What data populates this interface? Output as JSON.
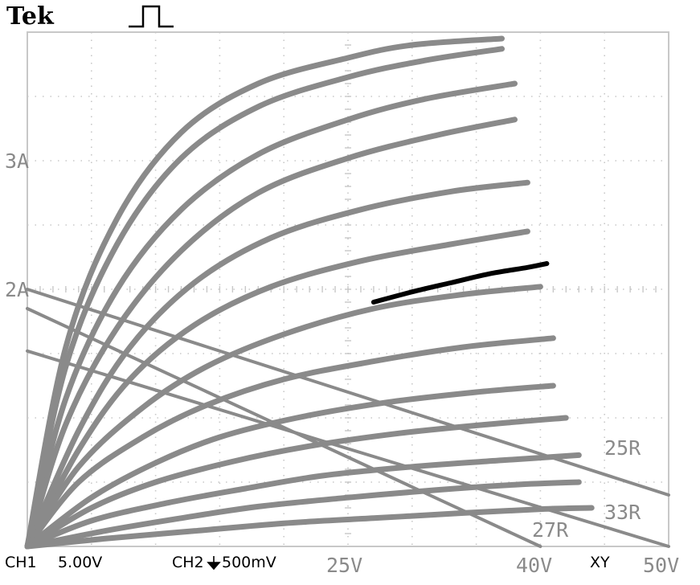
{
  "header": {
    "brand": "Tek",
    "trigger_icon": "pulse-trigger-icon"
  },
  "status_bar": {
    "ch1": "CH1",
    "ch1_scale": "5.00V",
    "ch2": "CH2",
    "ch2_coupling_icon": "ground-coupling-icon",
    "ch2_scale": "500mV",
    "mode": "XY"
  },
  "chart_data": {
    "type": "line",
    "title": "",
    "xlabel": "",
    "ylabel": "",
    "xlim": [
      0,
      50
    ],
    "ylim": [
      0,
      4
    ],
    "x_unit": "V",
    "y_unit": "A",
    "grid": true,
    "annotations": {
      "y_ticks": [
        {
          "value": 3,
          "label": "3A"
        },
        {
          "value": 2,
          "label": "2A"
        }
      ],
      "x_ticks": [
        {
          "value": 25,
          "label": "25V"
        },
        {
          "value": 40,
          "label": "40V"
        },
        {
          "value": 50,
          "label": "50V"
        }
      ],
      "load_lines": [
        {
          "label": "25R",
          "x": [
            0,
            50
          ],
          "y": [
            2.0,
            0.4
          ]
        },
        {
          "label": "33R",
          "x": [
            0,
            50
          ],
          "y": [
            1.52,
            0.0
          ]
        },
        {
          "label": "27R",
          "x": [
            0,
            40
          ],
          "y": [
            1.85,
            0.0
          ]
        }
      ]
    },
    "series": [
      {
        "x": [
          0,
          3,
          7,
          12,
          18,
          25,
          30,
          37
        ],
        "y": [
          0,
          1.55,
          2.55,
          3.22,
          3.6,
          3.8,
          3.9,
          3.95
        ]
      },
      {
        "x": [
          0,
          3,
          7,
          12,
          18,
          25,
          31,
          37
        ],
        "y": [
          0,
          1.4,
          2.35,
          3.02,
          3.42,
          3.65,
          3.78,
          3.87
        ]
      },
      {
        "x": [
          0,
          3,
          7,
          12,
          18,
          25,
          31,
          38
        ],
        "y": [
          0,
          1.15,
          2.0,
          2.62,
          3.05,
          3.32,
          3.48,
          3.6
        ]
      },
      {
        "x": [
          0,
          3,
          7,
          12,
          18,
          25,
          32,
          38
        ],
        "y": [
          0,
          0.95,
          1.7,
          2.3,
          2.75,
          3.02,
          3.2,
          3.32
        ]
      },
      {
        "x": [
          0,
          4,
          8,
          13,
          19,
          26,
          33,
          39
        ],
        "y": [
          0,
          0.9,
          1.55,
          2.05,
          2.4,
          2.62,
          2.76,
          2.83
        ]
      },
      {
        "x": [
          0,
          4,
          8,
          13,
          19,
          26,
          33,
          39
        ],
        "y": [
          0,
          0.75,
          1.3,
          1.72,
          2.02,
          2.22,
          2.35,
          2.45
        ]
      },
      {
        "x": [
          0,
          4,
          9,
          14,
          20,
          27,
          34,
          40
        ],
        "y": [
          0,
          0.62,
          1.08,
          1.4,
          1.65,
          1.85,
          1.96,
          2.02
        ]
      },
      {
        "x": [
          0,
          4,
          9,
          14,
          20,
          27,
          34,
          41
        ],
        "y": [
          0,
          0.5,
          0.85,
          1.1,
          1.3,
          1.44,
          1.55,
          1.62
        ]
      },
      {
        "x": [
          0,
          5,
          10,
          15,
          21,
          28,
          35,
          41
        ],
        "y": [
          0,
          0.38,
          0.65,
          0.85,
          1.0,
          1.12,
          1.2,
          1.25
        ]
      },
      {
        "x": [
          0,
          5,
          10,
          16,
          22,
          29,
          36,
          42
        ],
        "y": [
          0,
          0.3,
          0.5,
          0.66,
          0.78,
          0.88,
          0.95,
          1.0
        ]
      },
      {
        "x": [
          0,
          5,
          11,
          17,
          23,
          30,
          37,
          43
        ],
        "y": [
          0,
          0.2,
          0.34,
          0.45,
          0.55,
          0.62,
          0.67,
          0.71
        ]
      },
      {
        "x": [
          0,
          6,
          12,
          18,
          25,
          32,
          38,
          43
        ],
        "y": [
          0,
          0.12,
          0.22,
          0.31,
          0.38,
          0.44,
          0.48,
          0.5
        ]
      },
      {
        "x": [
          0,
          6,
          13,
          20,
          27,
          34,
          40,
          44
        ],
        "y": [
          0,
          0.06,
          0.12,
          0.18,
          0.22,
          0.26,
          0.29,
          0.3
        ]
      },
      {
        "x": [
          27,
          30,
          33,
          36,
          39,
          40.5
        ],
        "y": [
          1.9,
          1.98,
          2.05,
          2.12,
          2.17,
          2.2
        ],
        "highlight": true
      }
    ]
  },
  "colors": {
    "trace": "#8a8a8a",
    "highlight": "#000000",
    "grid": "#c8c8c8"
  }
}
